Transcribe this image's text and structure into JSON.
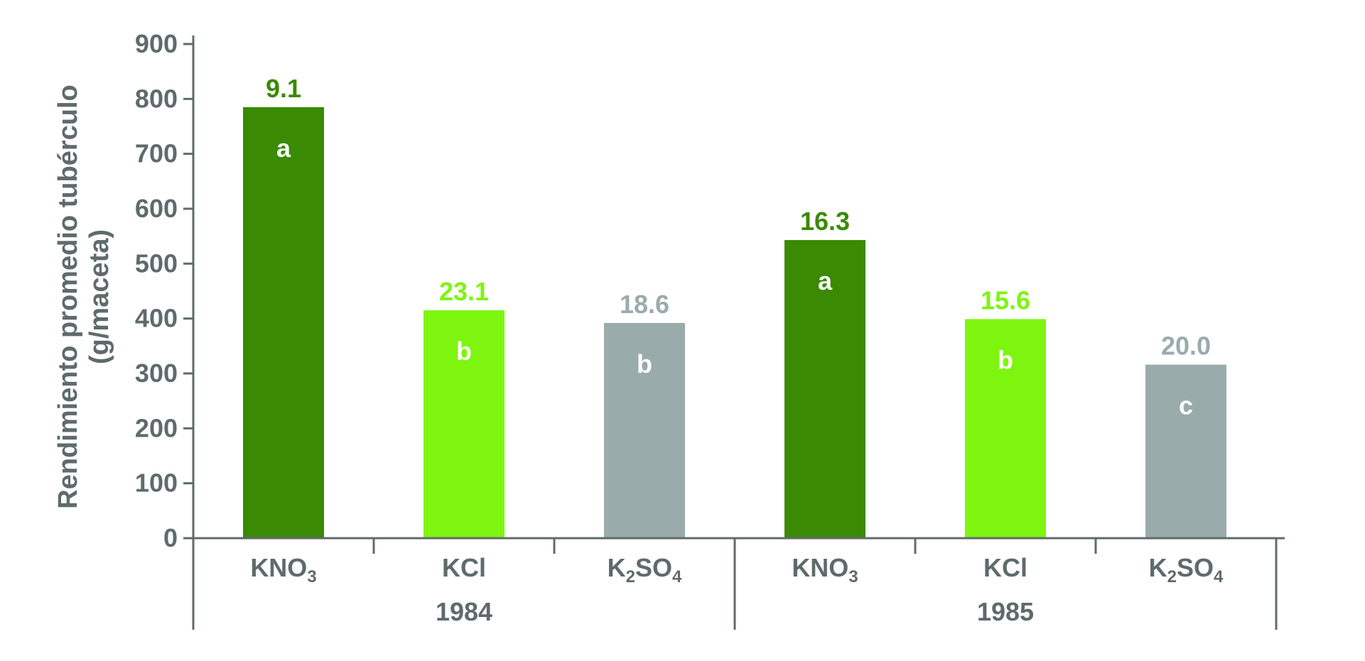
{
  "chart_data": {
    "type": "bar",
    "ylabel": [
      "Rendimiento promedio tubérculo",
      "(g/maceta)"
    ],
    "ylim": [
      0,
      900
    ],
    "yticks": [
      0,
      100,
      200,
      300,
      400,
      500,
      600,
      700,
      800,
      900
    ],
    "groups": [
      {
        "name": "1984",
        "bars": [
          {
            "category": "KNO3",
            "cat_main": "KNO",
            "cat_sub": "3",
            "cat_tail": "",
            "value": 785,
            "top_label": "9.1",
            "letter": "a",
            "color": "#3a8a04",
            "label_color": "#3a8a04"
          },
          {
            "category": "KCl",
            "cat_main": "KCl",
            "cat_sub": "",
            "cat_tail": "",
            "value": 415,
            "top_label": "23.1",
            "letter": "b",
            "color": "#7ef50e",
            "label_color": "#7ef50e"
          },
          {
            "category": "K2SO4",
            "cat_main": "K",
            "cat_sub": "2",
            "cat_tail": "SO",
            "cat_sub2": "4",
            "value": 392,
            "top_label": "18.6",
            "letter": "b",
            "color": "#9aabab",
            "label_color": "#9aabab"
          }
        ]
      },
      {
        "name": "1985",
        "bars": [
          {
            "category": "KNO3",
            "cat_main": "KNO",
            "cat_sub": "3",
            "cat_tail": "",
            "value": 543,
            "top_label": "16.3",
            "letter": "a",
            "color": "#3a8a04",
            "label_color": "#3a8a04"
          },
          {
            "category": "KCl",
            "cat_main": "KCl",
            "cat_sub": "",
            "cat_tail": "",
            "value": 399,
            "top_label": "15.6",
            "letter": "b",
            "color": "#7ef50e",
            "label_color": "#7ef50e"
          },
          {
            "category": "K2SO4",
            "cat_main": "K",
            "cat_sub": "2",
            "cat_tail": "SO",
            "cat_sub2": "4",
            "value": 316,
            "top_label": "20.0",
            "letter": "c",
            "color": "#9aabab",
            "label_color": "#9aabab"
          }
        ]
      }
    ],
    "grid": false,
    "legend": "none"
  }
}
